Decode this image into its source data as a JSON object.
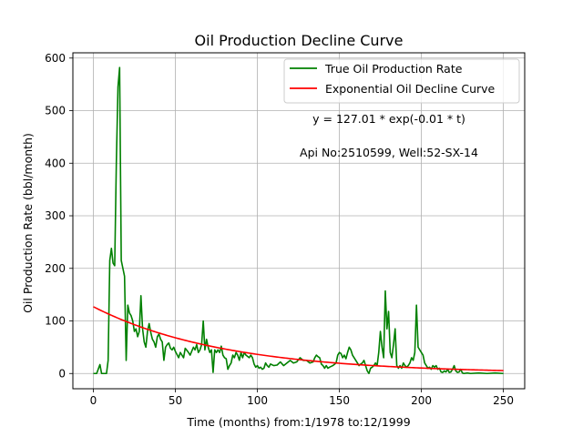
{
  "chart_data": {
    "type": "line",
    "title": "Oil Production Decline Curve",
    "xlabel": "Time (months) from:1/1978 to:12/1999",
    "ylabel": "Oil Production Rate (bbl/month)",
    "xlim": [
      -12.5,
      263
    ],
    "ylim": [
      -29,
      610
    ],
    "xticks": [
      0,
      50,
      100,
      150,
      200,
      250
    ],
    "yticks": [
      0,
      100,
      200,
      300,
      400,
      500,
      600
    ],
    "grid": true,
    "legend_position": "top-right",
    "annotations": [
      "y = 127.01 * exp(-0.01 * t)",
      "Api No:2510599, Well:52-SX-14"
    ],
    "series": [
      {
        "name": "True Oil Production Rate",
        "color": "#008000",
        "points": [
          [
            0,
            0
          ],
          [
            2,
            0
          ],
          [
            4,
            17
          ],
          [
            5,
            0
          ],
          [
            7,
            0
          ],
          [
            8,
            0
          ],
          [
            9,
            25
          ],
          [
            10,
            215
          ],
          [
            11,
            238
          ],
          [
            12,
            210
          ],
          [
            13,
            205
          ],
          [
            14,
            400
          ],
          [
            15,
            545
          ],
          [
            16,
            582
          ],
          [
            17,
            215
          ],
          [
            18,
            200
          ],
          [
            19,
            185
          ],
          [
            20,
            25
          ],
          [
            21,
            130
          ],
          [
            22,
            115
          ],
          [
            23,
            110
          ],
          [
            24,
            100
          ],
          [
            25,
            80
          ],
          [
            26,
            85
          ],
          [
            27,
            70
          ],
          [
            28,
            80
          ],
          [
            29,
            148
          ],
          [
            30,
            85
          ],
          [
            31,
            60
          ],
          [
            32,
            50
          ],
          [
            33,
            80
          ],
          [
            34,
            95
          ],
          [
            35,
            78
          ],
          [
            36,
            65
          ],
          [
            37,
            60
          ],
          [
            38,
            50
          ],
          [
            39,
            70
          ],
          [
            40,
            75
          ],
          [
            41,
            65
          ],
          [
            42,
            60
          ],
          [
            43,
            25
          ],
          [
            44,
            50
          ],
          [
            45,
            55
          ],
          [
            46,
            58
          ],
          [
            47,
            48
          ],
          [
            48,
            45
          ],
          [
            49,
            50
          ],
          [
            50,
            42
          ],
          [
            52,
            30
          ],
          [
            53,
            40
          ],
          [
            55,
            30
          ],
          [
            56,
            48
          ],
          [
            58,
            40
          ],
          [
            59,
            35
          ],
          [
            61,
            50
          ],
          [
            62,
            45
          ],
          [
            63,
            55
          ],
          [
            64,
            40
          ],
          [
            65,
            45
          ],
          [
            66,
            55
          ],
          [
            67,
            100
          ],
          [
            68,
            45
          ],
          [
            69,
            65
          ],
          [
            70,
            50
          ],
          [
            71,
            40
          ],
          [
            72,
            45
          ],
          [
            73,
            2
          ],
          [
            74,
            45
          ],
          [
            75,
            40
          ],
          [
            76,
            45
          ],
          [
            77,
            40
          ],
          [
            78,
            52
          ],
          [
            79,
            35
          ],
          [
            80,
            30
          ],
          [
            81,
            28
          ],
          [
            82,
            8
          ],
          [
            83,
            15
          ],
          [
            84,
            20
          ],
          [
            85,
            35
          ],
          [
            86,
            30
          ],
          [
            87,
            40
          ],
          [
            88,
            35
          ],
          [
            89,
            25
          ],
          [
            90,
            40
          ],
          [
            91,
            30
          ],
          [
            92,
            40
          ],
          [
            93,
            35
          ],
          [
            95,
            30
          ],
          [
            96,
            35
          ],
          [
            97,
            30
          ],
          [
            98,
            18
          ],
          [
            99,
            12
          ],
          [
            100,
            15
          ],
          [
            101,
            10
          ],
          [
            102,
            12
          ],
          [
            103,
            8
          ],
          [
            104,
            10
          ],
          [
            105,
            20
          ],
          [
            106,
            15
          ],
          [
            107,
            12
          ],
          [
            108,
            18
          ],
          [
            110,
            15
          ],
          [
            112,
            16
          ],
          [
            114,
            22
          ],
          [
            116,
            15
          ],
          [
            118,
            20
          ],
          [
            120,
            25
          ],
          [
            122,
            20
          ],
          [
            124,
            22
          ],
          [
            126,
            30
          ],
          [
            128,
            25
          ],
          [
            130,
            25
          ],
          [
            132,
            20
          ],
          [
            134,
            22
          ],
          [
            135,
            30
          ],
          [
            136,
            35
          ],
          [
            137,
            32
          ],
          [
            138,
            30
          ],
          [
            139,
            18
          ],
          [
            140,
            15
          ],
          [
            141,
            10
          ],
          [
            142,
            15
          ],
          [
            143,
            10
          ],
          [
            144,
            12
          ],
          [
            146,
            15
          ],
          [
            148,
            20
          ],
          [
            149,
            35
          ],
          [
            150,
            40
          ],
          [
            151,
            38
          ],
          [
            152,
            30
          ],
          [
            153,
            35
          ],
          [
            154,
            28
          ],
          [
            155,
            40
          ],
          [
            156,
            50
          ],
          [
            157,
            45
          ],
          [
            158,
            35
          ],
          [
            159,
            30
          ],
          [
            160,
            25
          ],
          [
            161,
            20
          ],
          [
            162,
            15
          ],
          [
            163,
            18
          ],
          [
            164,
            20
          ],
          [
            165,
            25
          ],
          [
            166,
            15
          ],
          [
            167,
            5
          ],
          [
            168,
            0
          ],
          [
            169,
            10
          ],
          [
            170,
            12
          ],
          [
            171,
            15
          ],
          [
            172,
            20
          ],
          [
            173,
            15
          ],
          [
            174,
            40
          ],
          [
            175,
            80
          ],
          [
            176,
            50
          ],
          [
            177,
            30
          ],
          [
            178,
            157
          ],
          [
            179,
            85
          ],
          [
            180,
            118
          ],
          [
            181,
            40
          ],
          [
            182,
            30
          ],
          [
            183,
            55
          ],
          [
            184,
            85
          ],
          [
            185,
            15
          ],
          [
            186,
            10
          ],
          [
            187,
            15
          ],
          [
            188,
            10
          ],
          [
            189,
            20
          ],
          [
            190,
            15
          ],
          [
            191,
            12
          ],
          [
            192,
            15
          ],
          [
            193,
            20
          ],
          [
            194,
            30
          ],
          [
            195,
            25
          ],
          [
            196,
            40
          ],
          [
            197,
            130
          ],
          [
            198,
            50
          ],
          [
            199,
            45
          ],
          [
            200,
            40
          ],
          [
            201,
            35
          ],
          [
            202,
            20
          ],
          [
            203,
            15
          ],
          [
            204,
            10
          ],
          [
            205,
            12
          ],
          [
            206,
            8
          ],
          [
            207,
            15
          ],
          [
            208,
            12
          ],
          [
            209,
            15
          ],
          [
            210,
            8
          ],
          [
            211,
            10
          ],
          [
            212,
            3
          ],
          [
            213,
            2
          ],
          [
            214,
            5
          ],
          [
            215,
            3
          ],
          [
            216,
            8
          ],
          [
            217,
            2
          ],
          [
            218,
            3
          ],
          [
            219,
            8
          ],
          [
            220,
            15
          ],
          [
            221,
            5
          ],
          [
            222,
            2
          ],
          [
            223,
            3
          ],
          [
            224,
            8
          ],
          [
            225,
            1
          ],
          [
            226,
            0
          ],
          [
            228,
            1
          ],
          [
            230,
            0
          ],
          [
            235,
            1
          ],
          [
            240,
            0
          ],
          [
            245,
            1
          ],
          [
            250,
            0
          ]
        ]
      },
      {
        "name": "Exponential Oil Decline Curve",
        "color": "#ff0000",
        "function": {
          "a": 127.01,
          "b": 0.0125,
          "x_start": 0,
          "x_end": 250
        }
      }
    ]
  }
}
